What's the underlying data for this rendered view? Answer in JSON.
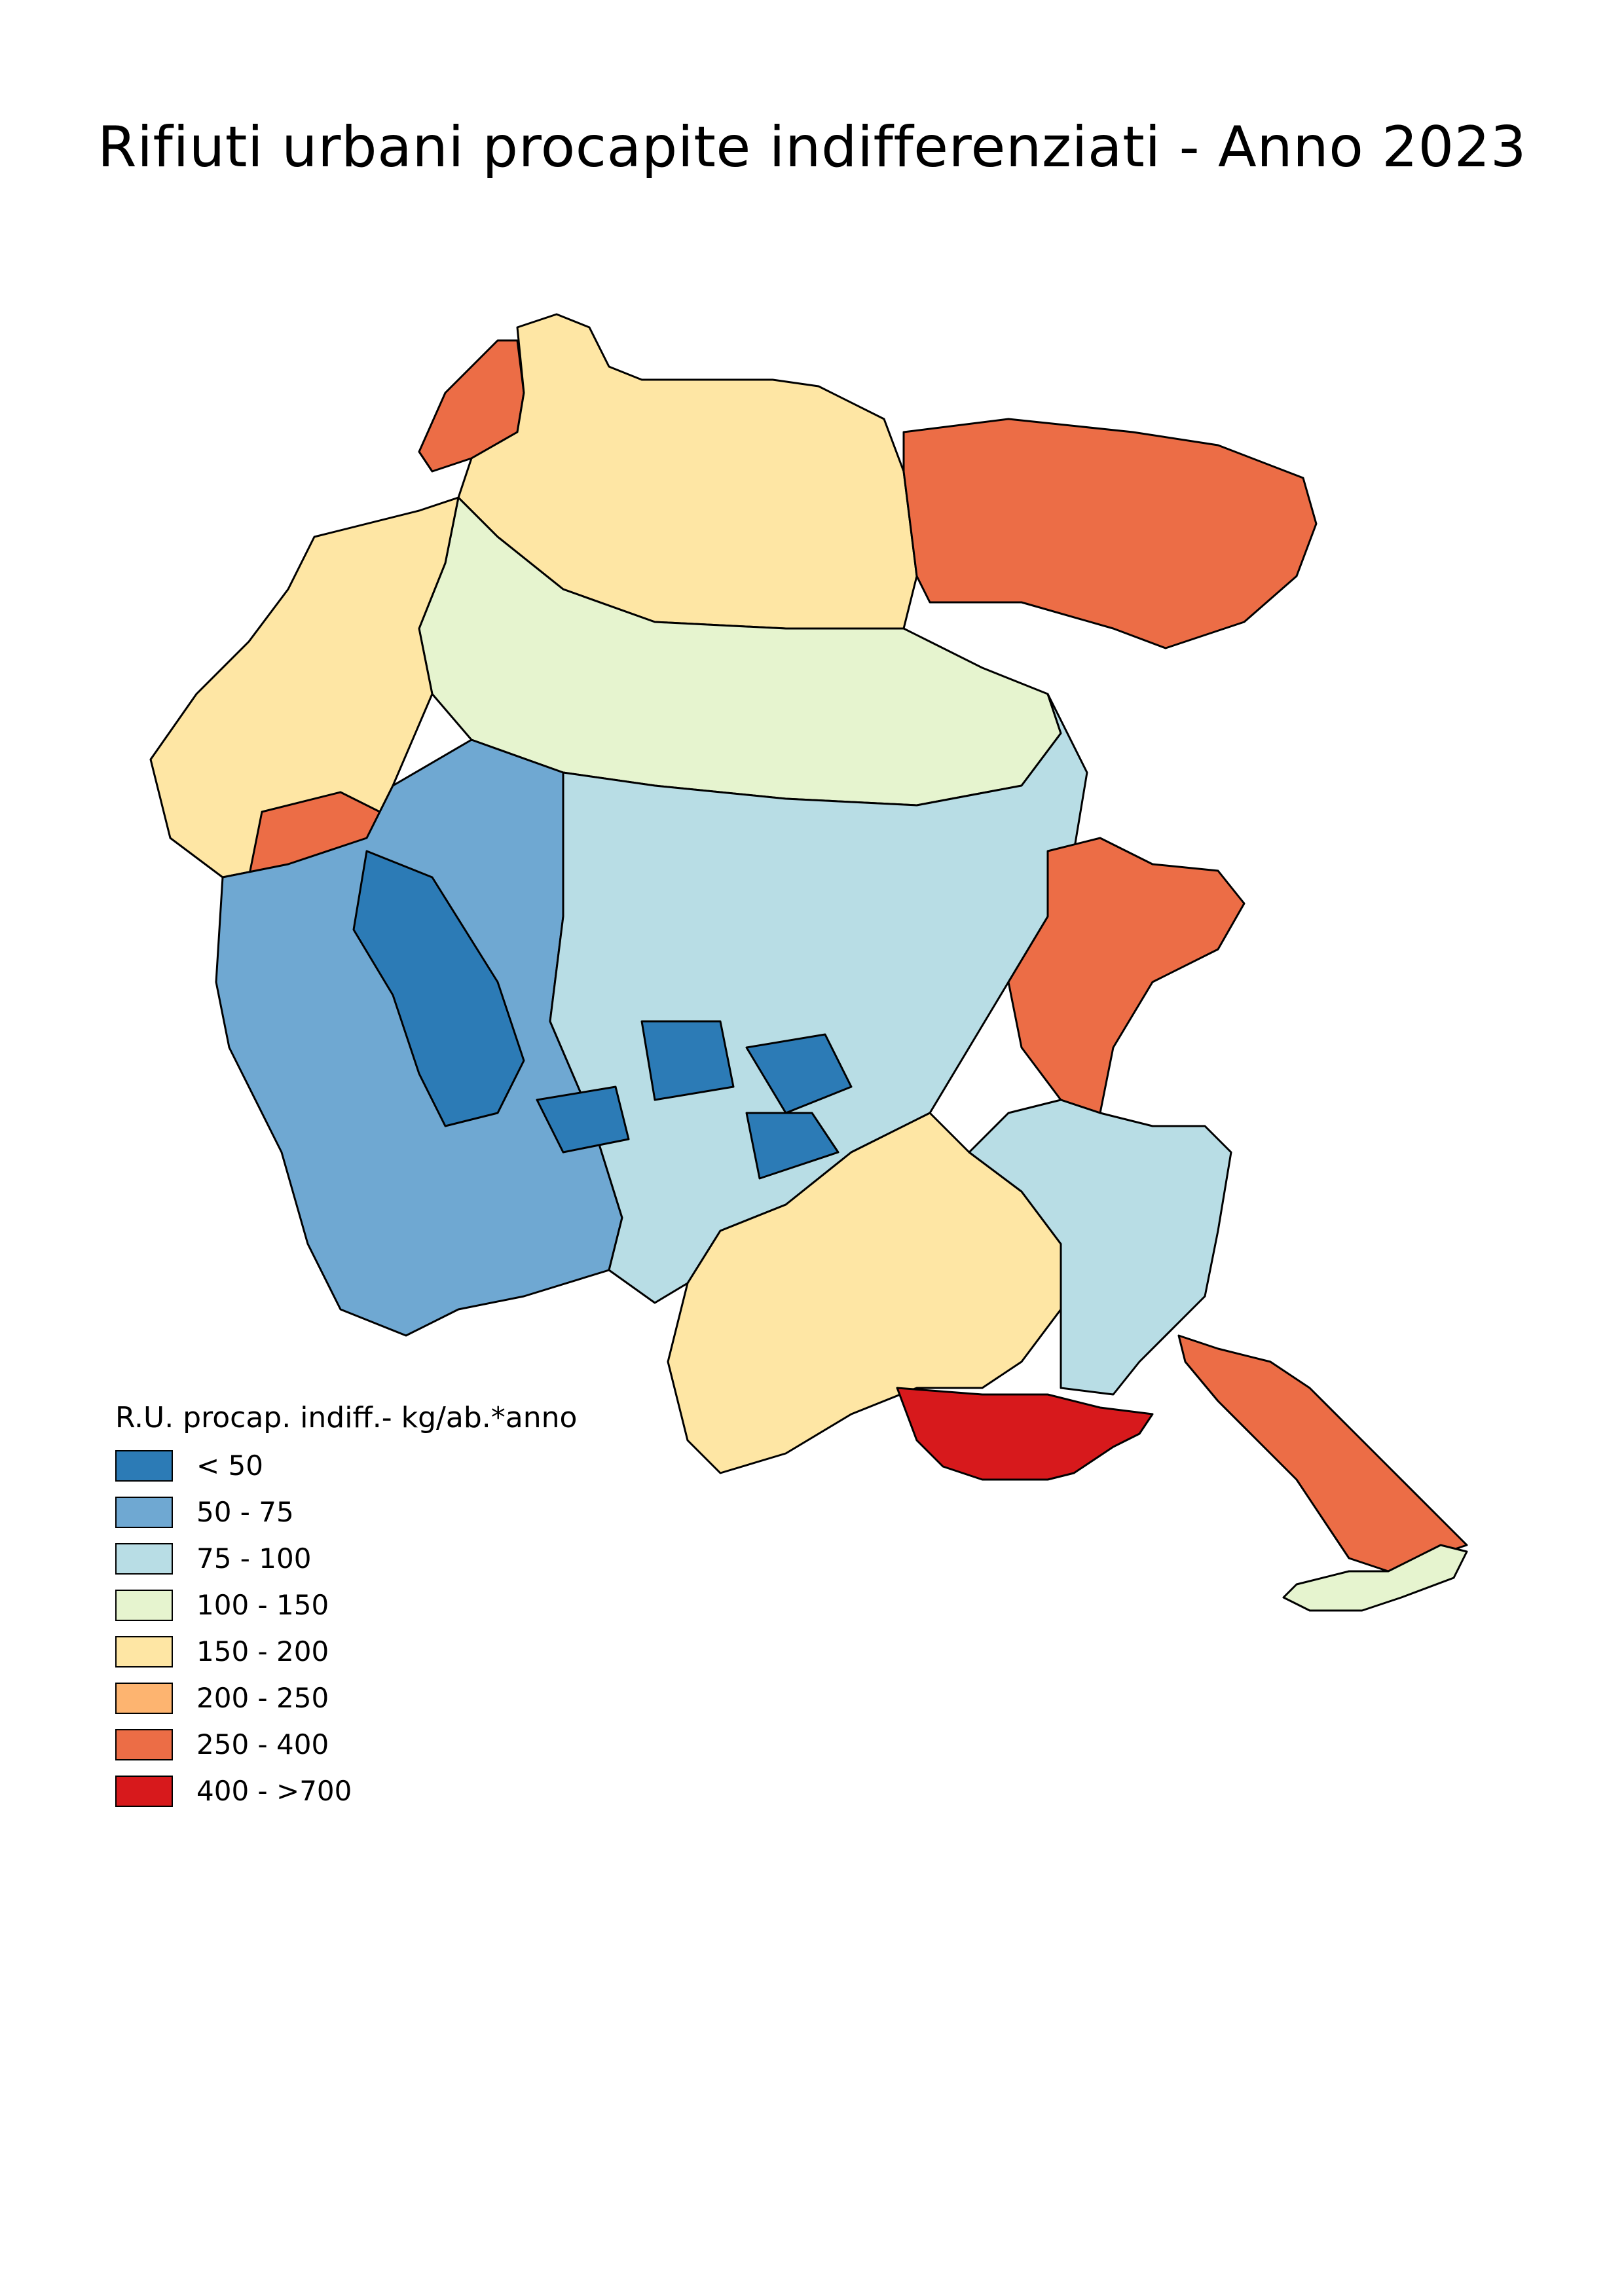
{
  "title": "Rifiuti urbani procapite indifferenziati - Anno 2023",
  "legend": {
    "title": "R.U. procap. indiff.- kg/ab.*anno",
    "classes": [
      {
        "label": "< 50",
        "color": "#2c7bb6"
      },
      {
        "label": "50 - 75",
        "color": "#6fa8d2"
      },
      {
        "label": "75 - 100",
        "color": "#b8dde5"
      },
      {
        "label": "100 - 150",
        "color": "#e6f4cf"
      },
      {
        "label": "150 - 200",
        "color": "#fee6a4"
      },
      {
        "label": "200 - 250",
        "color": "#fdb470"
      },
      {
        "label": "250 - 400",
        "color": "#ec6d46"
      },
      {
        "label": "400 - >700",
        "color": "#d7191c"
      }
    ]
  },
  "map": {
    "classes_by_area": [
      {
        "name": "north-west-peak",
        "cls": 6
      },
      {
        "name": "north-central",
        "cls": 4
      },
      {
        "name": "north-east",
        "cls": 6
      },
      {
        "name": "carnia",
        "cls": 3
      },
      {
        "name": "west",
        "cls": 4
      },
      {
        "name": "west-mid",
        "cls": 6
      },
      {
        "name": "central-west",
        "cls": 1
      },
      {
        "name": "central-west-deep",
        "cls": 0
      },
      {
        "name": "central",
        "cls": 2
      },
      {
        "name": "central-deep",
        "cls": 0
      },
      {
        "name": "east-border",
        "cls": 6
      },
      {
        "name": "south-central",
        "cls": 4
      },
      {
        "name": "lagoon-coast",
        "cls": 7
      },
      {
        "name": "isonzo",
        "cls": 2
      },
      {
        "name": "karst-coast",
        "cls": 6
      },
      {
        "name": "trieste-tip",
        "cls": 3
      }
    ]
  }
}
